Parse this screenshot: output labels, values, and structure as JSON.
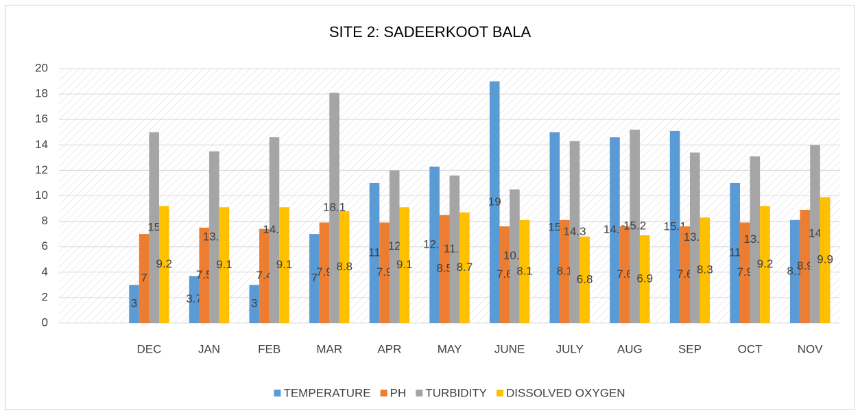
{
  "chart_data": {
    "type": "bar",
    "title": "SITE 2: SADEERKOOT BALA",
    "categories": [
      null,
      "DEC",
      "JAN",
      "FEB",
      "MAR",
      "APR",
      "MAY",
      "JUNE",
      "JULY",
      "AUG",
      "SEP",
      "OCT",
      "NOV"
    ],
    "series": [
      {
        "name": "TEMPERATURE",
        "color": "#5b9bd5",
        "values": [
          null,
          3,
          3.7,
          3,
          7,
          11,
          12.3,
          19,
          15,
          14.6,
          15.1,
          11,
          8.1
        ]
      },
      {
        "name": "PH",
        "color": "#ed7d31",
        "values": [
          null,
          7,
          7.5,
          7.4,
          7.9,
          7.9,
          8.5,
          7.6,
          8.1,
          7.6,
          7.6,
          7.9,
          8.9
        ]
      },
      {
        "name": "TURBIDITY",
        "color": "#a5a5a5",
        "values": [
          null,
          15,
          13.5,
          14.6,
          18.1,
          12,
          11.6,
          10.5,
          14.3,
          15.2,
          13.4,
          13.1,
          14
        ]
      },
      {
        "name": "DISSOLVED OXYGEN",
        "color": "#ffc000",
        "values": [
          null,
          9.2,
          9.1,
          9.1,
          8.8,
          9.1,
          8.7,
          8.1,
          6.8,
          6.9,
          8.3,
          9.2,
          9.9
        ]
      }
    ],
    "ylim": [
      0,
      20
    ],
    "yticks": [
      0,
      2,
      4,
      6,
      8,
      10,
      12,
      14,
      16,
      18,
      20
    ],
    "grid": true,
    "legend": "bottom"
  }
}
